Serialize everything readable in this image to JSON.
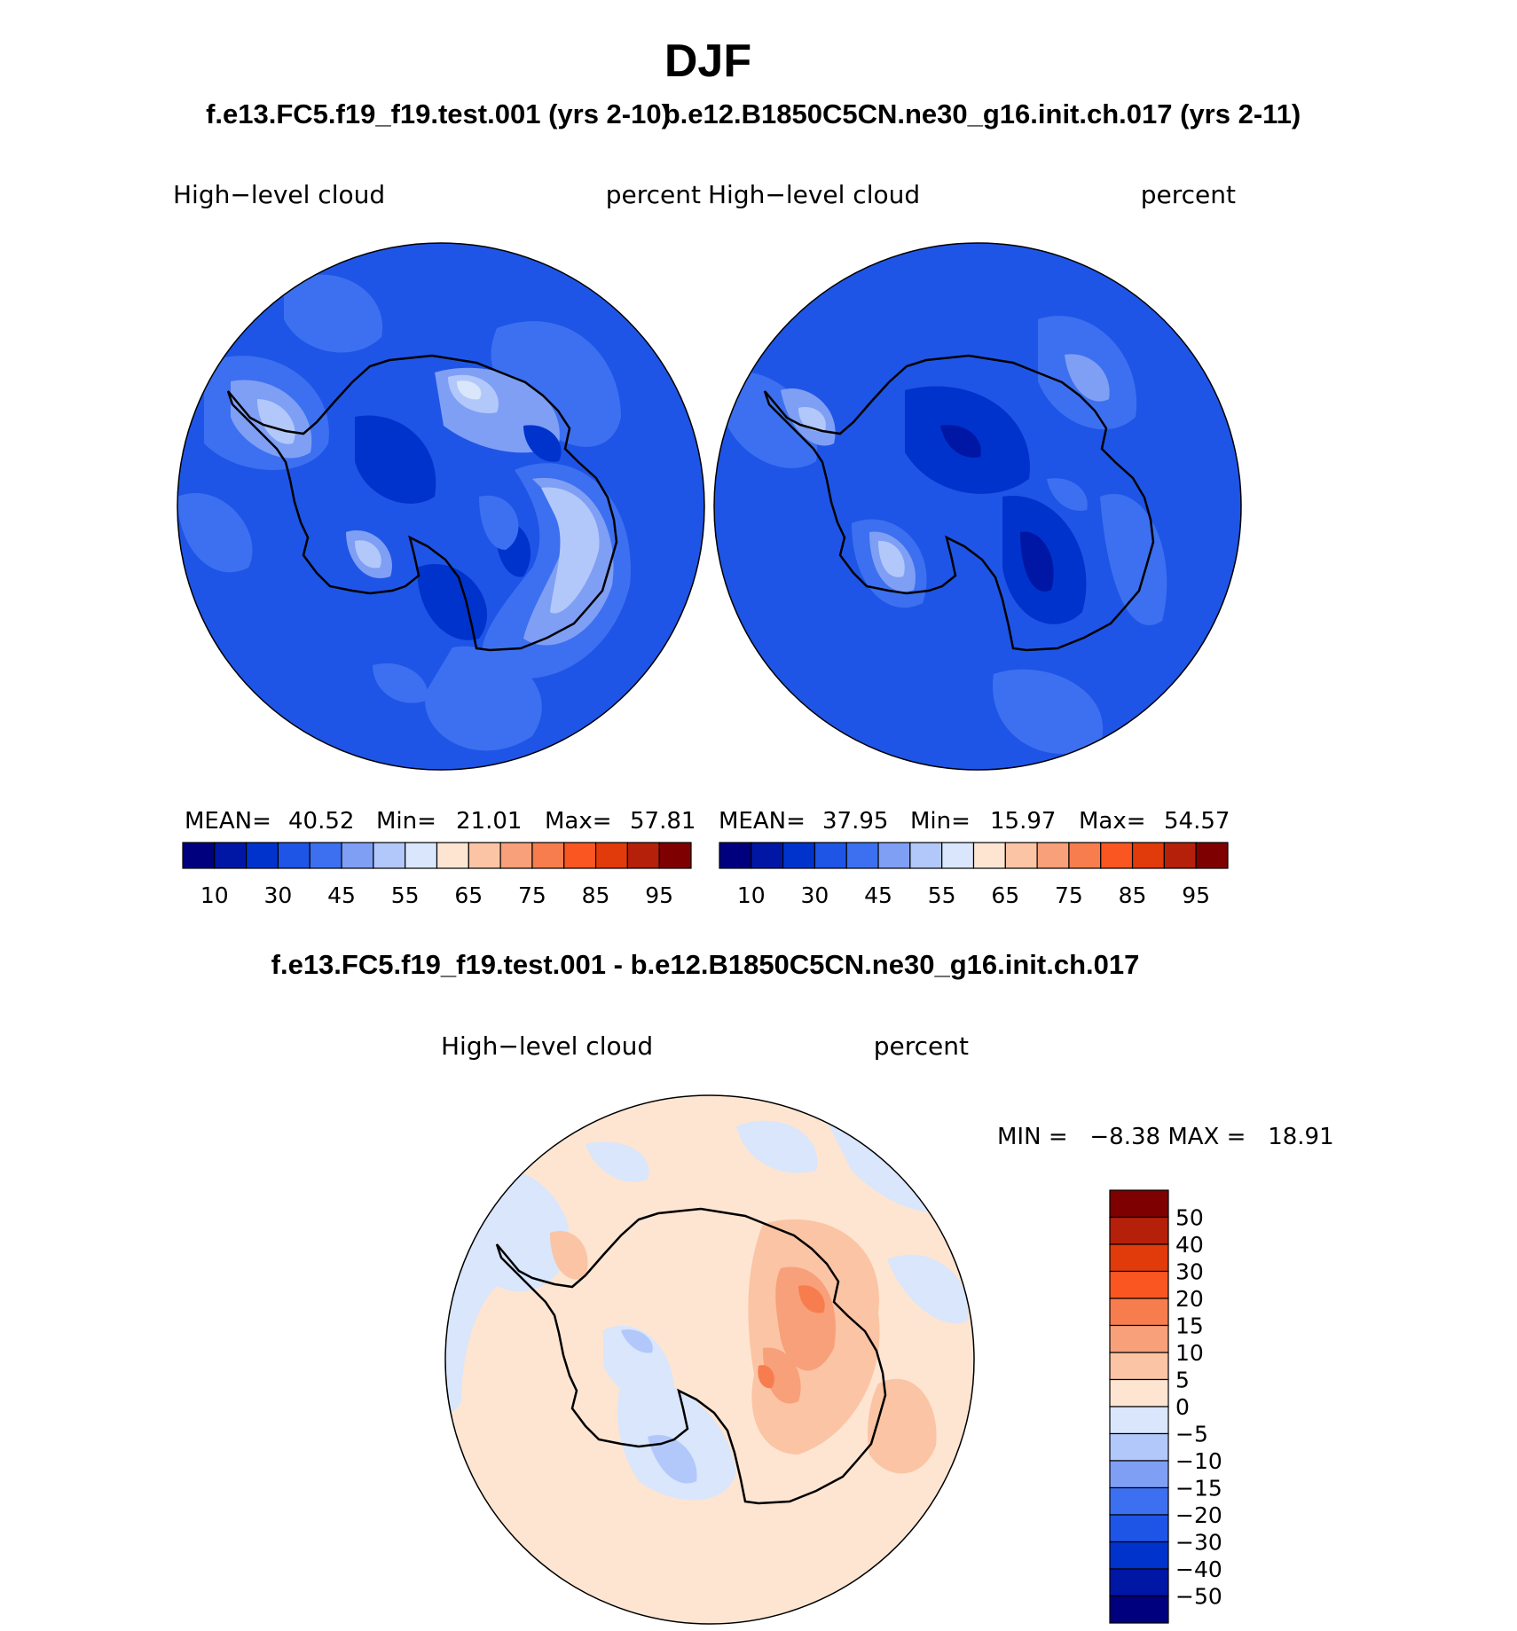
{
  "season": "DJF",
  "top": {
    "case_left": "f.e13.FC5.f19_f19.test.001 (yrs 2-10)",
    "case_right": "b.e12.B1850C5CN.ne30_g16.init.ch.017 (yrs 2-11)"
  },
  "panels": [
    {
      "variable": "High−level cloud",
      "units": "percent",
      "mean_label": "MEAN=",
      "mean": "40.52",
      "min_label": "Min=",
      "min": "21.01",
      "max_label": "Max=",
      "max": "57.81"
    },
    {
      "variable": "High−level cloud",
      "units": "percent",
      "mean_label": "MEAN=",
      "mean": "37.95",
      "min_label": "Min=",
      "min": "15.97",
      "max_label": "Max=",
      "max": "54.57"
    }
  ],
  "colorbar_top": {
    "colors": [
      "#00007f",
      "#0017a5",
      "#0033cc",
      "#1f55e6",
      "#3d70f0",
      "#7f9ff5",
      "#b2c8fa",
      "#d9e6fb",
      "#fde5d2",
      "#fbc4a4",
      "#f7a07a",
      "#f77d4e",
      "#fa5621",
      "#e13a0b",
      "#b5200a",
      "#7f0000"
    ],
    "tick_labels": [
      "10",
      "30",
      "45",
      "55",
      "65",
      "75",
      "85",
      "95"
    ]
  },
  "diff": {
    "title": "f.e13.FC5.f19_f19.test.001 - b.e12.B1850C5CN.ne30_g16.init.ch.017",
    "variable": "High−level cloud",
    "units": "percent",
    "minmax_label": "MIN =   −8.38 MAX =   18.91"
  },
  "colorbar_diff": {
    "colors": [
      "#7f0000",
      "#b5200a",
      "#e13a0b",
      "#fa5621",
      "#f77d4e",
      "#f7a07a",
      "#fbc4a4",
      "#fde5d2",
      "#d9e6fb",
      "#b2c8fa",
      "#7f9ff5",
      "#3d70f0",
      "#1f55e6",
      "#0033cc",
      "#0017a5",
      "#00007f"
    ],
    "tick_labels": [
      "50",
      "40",
      "30",
      "20",
      "15",
      "10",
      "5",
      "0",
      "−5",
      "−10",
      "−15",
      "−20",
      "−30",
      "−40",
      "−50"
    ]
  },
  "colors": {
    "map1_base": "#1f55e6",
    "map2_base": "#1f55e6",
    "diff_base": "#fde5d2"
  }
}
